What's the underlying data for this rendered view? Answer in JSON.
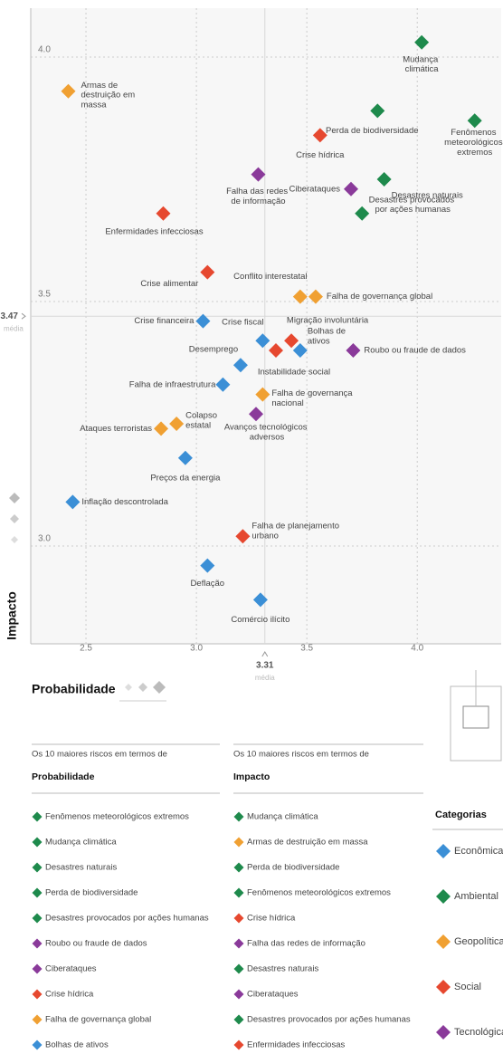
{
  "chart_data": {
    "type": "scatter",
    "x_label": "Probabilidade",
    "y_label": "Impacto",
    "xlim": [
      2.25,
      4.38
    ],
    "ylim": [
      2.8,
      4.1
    ],
    "xticks": [
      2.5,
      {
        "value": 3,
        "label": "3.0"
      },
      3.5,
      {
        "value": 4,
        "label": "4.0"
      }
    ],
    "yticks": [
      {
        "value": 3,
        "label": "3.0"
      },
      3.5,
      {
        "value": 4,
        "label": "4.0"
      }
    ],
    "grid": true,
    "x_mean": {
      "value": 3.31,
      "label": "3.31"
    },
    "y_mean": {
      "value": 3.47,
      "label": "3.47"
    },
    "mean_label": "média",
    "legend_title": "Categorias",
    "series": [
      {
        "name": "Econômica",
        "color": "#3b8fd6",
        "labels": [
          "Crise financeira",
          "Crise fiscal",
          "Bolhas de ativos",
          "Desemprego",
          "Falha de infraestrutura",
          "Preços da energia",
          "Inflação descontrolada",
          "Deflação",
          "Comércio ilícito"
        ],
        "x": [
          3.03,
          3.3,
          3.47,
          3.2,
          3.12,
          2.95,
          2.44,
          3.05,
          3.29
        ],
        "values": [
          3.46,
          3.42,
          3.4,
          3.37,
          3.33,
          3.18,
          3.09,
          2.96,
          2.89
        ]
      },
      {
        "name": "Ambiental",
        "color": "#1e8a4c",
        "labels": [
          "Mudança climática",
          "Perda de biodiversidade",
          "Fenômenos meteorológicos extremos",
          "Desastres naturais",
          "Desastres provocados por ações humanas"
        ],
        "x": [
          4.02,
          3.82,
          4.26,
          3.85,
          3.75
        ],
        "values": [
          4.03,
          3.89,
          3.87,
          3.75,
          3.68
        ]
      },
      {
        "name": "Geopolítica",
        "color": "#f0a032",
        "labels": [
          "Armas de destruição em massa",
          "Conflito interestatal",
          "Falha de governança global",
          "Falha de governança nacional",
          "Colapso estatal",
          "Ataques terroristas"
        ],
        "x": [
          2.42,
          3.47,
          3.54,
          3.3,
          2.91,
          2.84
        ],
        "values": [
          3.93,
          3.51,
          3.51,
          3.31,
          3.25,
          3.24
        ]
      },
      {
        "name": "Social",
        "color": "#e6482f",
        "labels": [
          "Crise hídrica",
          "Enfermidades infecciosas",
          "Crise alimentar",
          "Migração involuntária",
          "Instabilidade social",
          "Falha de planejamento urbano"
        ],
        "x": [
          3.56,
          2.85,
          3.05,
          3.43,
          3.36,
          3.21
        ],
        "values": [
          3.84,
          3.68,
          3.56,
          3.42,
          3.4,
          3.02
        ]
      },
      {
        "name": "Tecnológica",
        "color": "#8a3a9a",
        "labels": [
          "Falha das redes de informação",
          "Ciberataques",
          "Roubo ou fraude de dados",
          "Avanços tecnológicos adversos"
        ],
        "x": [
          3.28,
          3.7,
          3.71,
          3.27
        ],
        "values": [
          3.76,
          3.73,
          3.4,
          3.27
        ]
      }
    ]
  },
  "lists": [
    {
      "intro": "Os 10 maiores riscos em termos de",
      "title": "Probabilidade",
      "items": [
        {
          "label": "Fenômenos meteorológicos extremos",
          "color": "#1e8a4c"
        },
        {
          "label": "Mudança climática",
          "color": "#1e8a4c"
        },
        {
          "label": "Desastres naturais",
          "color": "#1e8a4c"
        },
        {
          "label": "Perda de biodiversidade",
          "color": "#1e8a4c"
        },
        {
          "label": "Desastres provocados por ações humanas",
          "color": "#1e8a4c"
        },
        {
          "label": "Roubo ou fraude de dados",
          "color": "#8a3a9a"
        },
        {
          "label": "Ciberataques",
          "color": "#8a3a9a"
        },
        {
          "label": "Crise hídrica",
          "color": "#e6482f"
        },
        {
          "label": "Falha de governança global",
          "color": "#f0a032"
        },
        {
          "label": "Bolhas de ativos",
          "color": "#3b8fd6"
        }
      ]
    },
    {
      "intro": "Os 10 maiores riscos em termos de",
      "title": "Impacto",
      "items": [
        {
          "label": "Mudança climática",
          "color": "#1e8a4c"
        },
        {
          "label": "Armas de destruição em massa",
          "color": "#f0a032"
        },
        {
          "label": "Perda de biodiversidade",
          "color": "#1e8a4c"
        },
        {
          "label": "Fenômenos meteorológicos extremos",
          "color": "#1e8a4c"
        },
        {
          "label": "Crise hídrica",
          "color": "#e6482f"
        },
        {
          "label": "Falha das redes de informação",
          "color": "#8a3a9a"
        },
        {
          "label": "Desastres naturais",
          "color": "#1e8a4c"
        },
        {
          "label": "Ciberataques",
          "color": "#8a3a9a"
        },
        {
          "label": "Desastres provocados por ações humanas",
          "color": "#1e8a4c"
        },
        {
          "label": "Enfermidades infecciosas",
          "color": "#e6482f"
        }
      ]
    }
  ]
}
